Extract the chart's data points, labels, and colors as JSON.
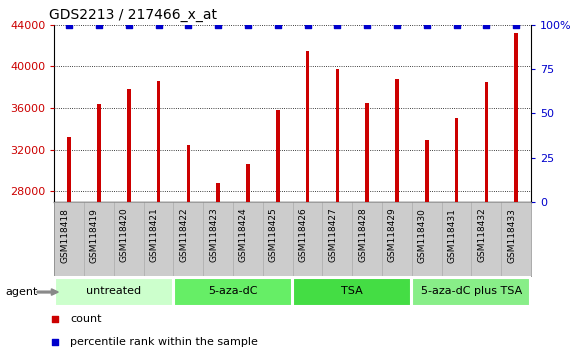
{
  "title": "GDS2213 / 217466_x_at",
  "samples": [
    "GSM118418",
    "GSM118419",
    "GSM118420",
    "GSM118421",
    "GSM118422",
    "GSM118423",
    "GSM118424",
    "GSM118425",
    "GSM118426",
    "GSM118427",
    "GSM118428",
    "GSM118429",
    "GSM118430",
    "GSM118431",
    "GSM118432",
    "GSM118433"
  ],
  "counts": [
    33200,
    36400,
    37800,
    38600,
    32500,
    28800,
    30600,
    35800,
    41500,
    39800,
    36500,
    38800,
    32900,
    35000,
    38500,
    43200
  ],
  "percentile_values": [
    100,
    100,
    100,
    100,
    100,
    100,
    100,
    100,
    100,
    100,
    100,
    100,
    100,
    100,
    100,
    100
  ],
  "bar_color": "#cc0000",
  "dot_color": "#0000cc",
  "ylim_left": [
    27000,
    44000
  ],
  "ylim_right": [
    0,
    100
  ],
  "yticks_left": [
    28000,
    32000,
    36000,
    40000,
    44000
  ],
  "yticks_right": [
    0,
    25,
    50,
    75,
    100
  ],
  "groups": [
    {
      "label": "untreated",
      "start": 0,
      "end": 4,
      "color": "#ccffcc"
    },
    {
      "label": "5-aza-dC",
      "start": 4,
      "end": 8,
      "color": "#66ee66"
    },
    {
      "label": "TSA",
      "start": 8,
      "end": 12,
      "color": "#44dd44"
    },
    {
      "label": "5-aza-dC plus TSA",
      "start": 12,
      "end": 16,
      "color": "#88ee88"
    }
  ],
  "legend_count_color": "#cc0000",
  "legend_dot_color": "#0000cc",
  "background_color": "#ffffff",
  "tick_area_bg": "#cccccc",
  "agent_label": "agent"
}
